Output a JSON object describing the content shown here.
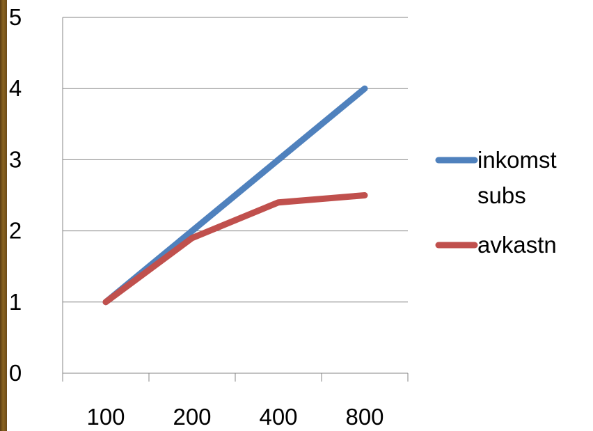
{
  "chart_data": {
    "type": "line",
    "categories": [
      "100",
      "200",
      "400",
      "800"
    ],
    "yticks": [
      "0",
      "1",
      "2",
      "3",
      "4",
      "5"
    ],
    "ylim": [
      0,
      5
    ],
    "grid": "horizontal",
    "legend_position": "right",
    "series": [
      {
        "name_lines": [
          "inkomst",
          "subs"
        ],
        "values": [
          1,
          2,
          3,
          4
        ],
        "color": "#4f81bd"
      },
      {
        "name_lines": [
          "avkastn"
        ],
        "values": [
          1,
          1.9,
          2.4,
          2.5
        ],
        "color": "#c0504d"
      }
    ]
  }
}
